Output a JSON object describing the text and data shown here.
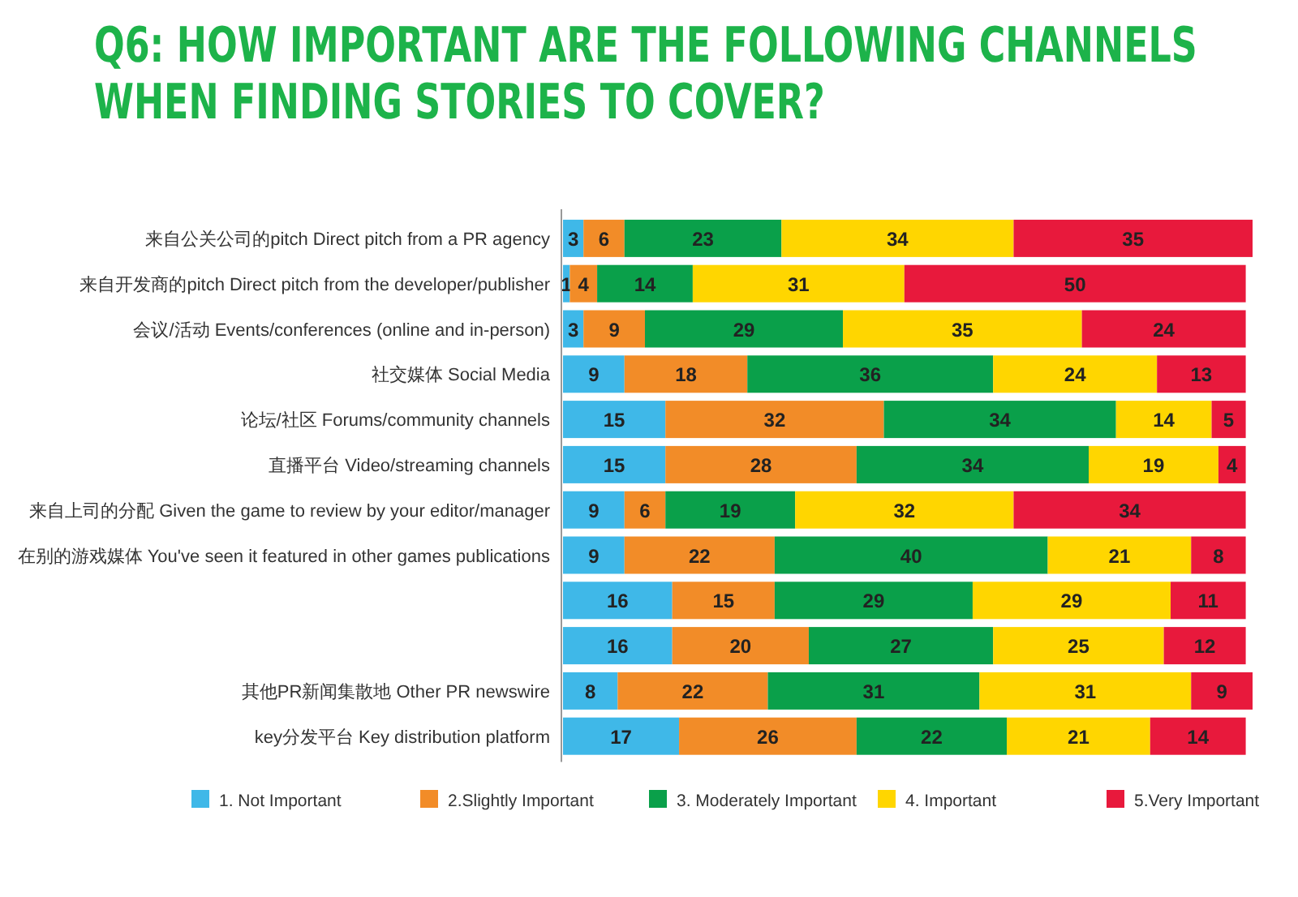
{
  "chart_data": {
    "type": "bar",
    "orientation": "horizontal",
    "stacked": true,
    "data_labels": true,
    "legend": "bottom",
    "tick_labels": "y",
    "xlim": [
      0,
      101
    ],
    "title": "Q6: HOW IMPORTANT ARE THE FOLLOWING CHANNELS WHEN FINDING STORIES TO COVER?",
    "categories": [
      "来自公关公司的pitch  Direct pitch from a PR agency",
      "来自开发商的pitch  Direct pitch from the developer/publisher",
      "会议/活动  Events/conferences (online and in-person)",
      "社交媒体  Social Media",
      "论坛/社区 Forums/community channels",
      "直播平台 Video/streaming channels",
      "来自上司的分配 Given the game to review by your editor/manager",
      "在别的游戏媒体 You've seen it featured in other games publications",
      null,
      null,
      "其他PR新闻集散地  Other PR newswire",
      "key分发平台 Key distribution platform"
    ],
    "series": [
      {
        "name": "1. Not Important",
        "color": "#3fb8e8",
        "values": [
          3,
          1,
          3,
          9,
          15,
          15,
          9,
          9,
          16,
          16,
          8,
          17
        ]
      },
      {
        "name": "2.Slightly Important",
        "color": "#f28c28",
        "values": [
          6,
          4,
          9,
          18,
          32,
          28,
          6,
          22,
          15,
          20,
          22,
          26
        ]
      },
      {
        "name": "3. Moderately Important",
        "color": "#0aa04a",
        "values": [
          23,
          14,
          29,
          36,
          34,
          34,
          19,
          40,
          29,
          27,
          31,
          22
        ]
      },
      {
        "name": "4. Important",
        "color": "#ffd600",
        "values": [
          34,
          31,
          35,
          24,
          14,
          19,
          32,
          21,
          29,
          25,
          31,
          21
        ]
      },
      {
        "name": "5.Very Important",
        "color": "#e8193c",
        "values": [
          35,
          50,
          24,
          13,
          5,
          4,
          34,
          8,
          11,
          12,
          9,
          14
        ]
      }
    ]
  }
}
